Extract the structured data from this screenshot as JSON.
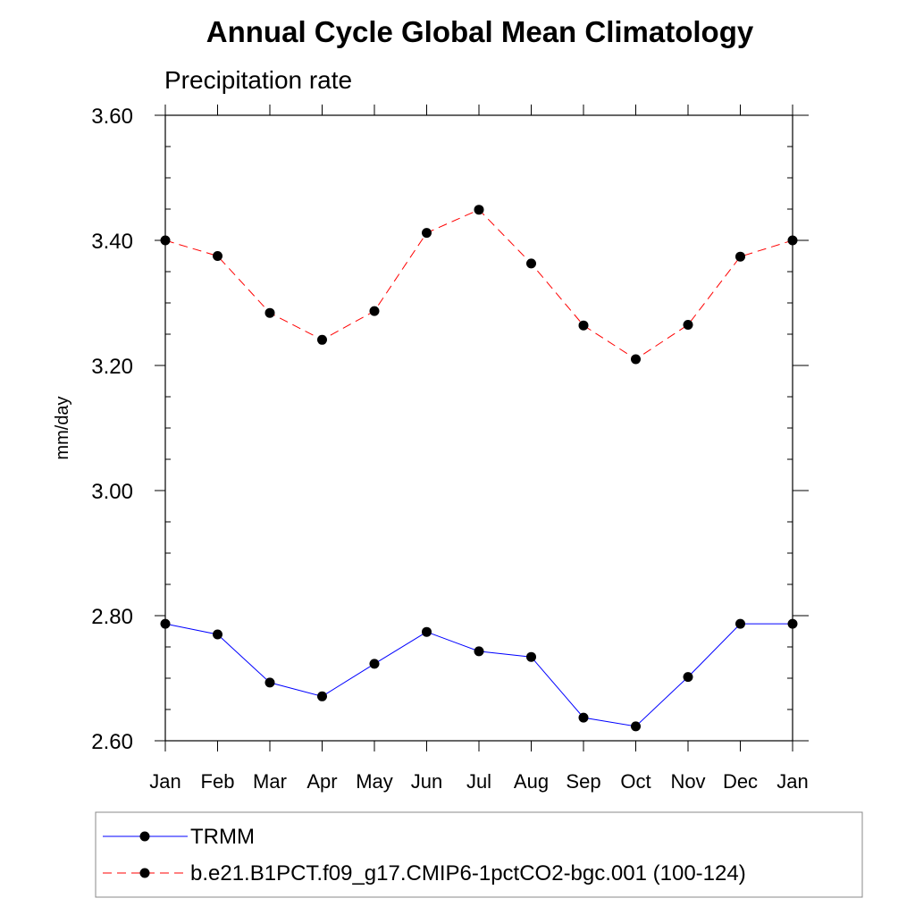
{
  "chart_data": {
    "type": "line",
    "title": "Annual Cycle Global Mean Climatology",
    "subtitle": "Precipitation rate",
    "xlabel": "",
    "ylabel": "mm/day",
    "categories": [
      "Jan",
      "Feb",
      "Mar",
      "Apr",
      "May",
      "Jun",
      "Jul",
      "Aug",
      "Sep",
      "Oct",
      "Nov",
      "Dec",
      "Jan"
    ],
    "ylim": [
      2.6,
      3.6
    ],
    "yticks": [
      2.6,
      2.8,
      3.0,
      3.2,
      3.4,
      3.6
    ],
    "ytick_labels": [
      "2.60",
      "2.80",
      "3.00",
      "3.20",
      "3.40",
      "3.60"
    ],
    "series": [
      {
        "name": "TRMM",
        "color": "#0000ff",
        "dash": "solid",
        "marker": "circle",
        "values": [
          2.787,
          2.77,
          2.693,
          2.671,
          2.723,
          2.774,
          2.743,
          2.734,
          2.637,
          2.623,
          2.702,
          2.787,
          2.787
        ]
      },
      {
        "name": "b.e21.B1PCT.f09_g17.CMIP6-1pctCO2-bgc.001 (100-124)",
        "color": "#ff0000",
        "dash": "dashed",
        "marker": "circle",
        "values": [
          3.4,
          3.375,
          3.284,
          3.241,
          3.287,
          3.412,
          3.449,
          3.363,
          3.264,
          3.21,
          3.265,
          3.374,
          3.4
        ]
      }
    ],
    "legend_position": "bottom-left"
  }
}
